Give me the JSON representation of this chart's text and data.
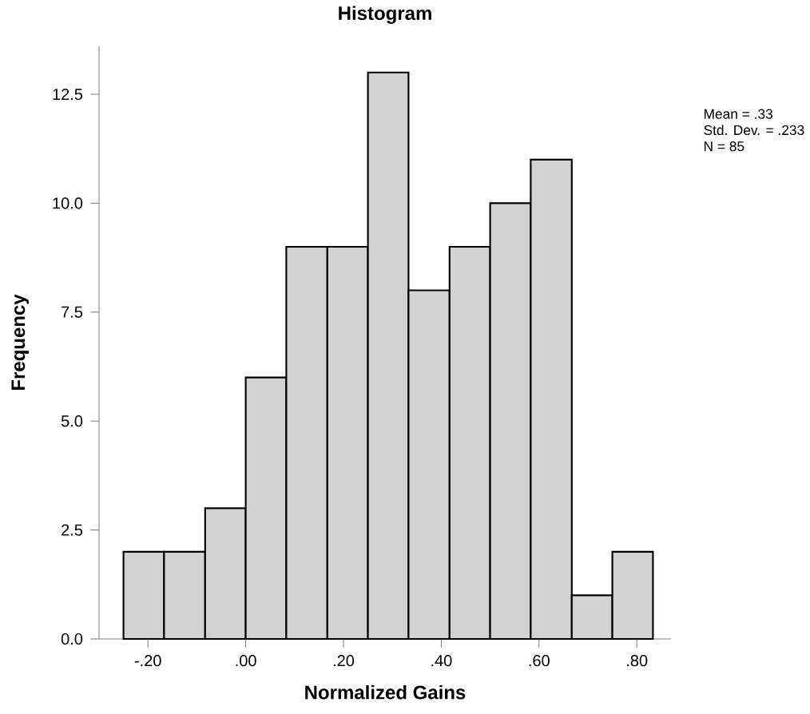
{
  "chart_data": {
    "type": "histogram",
    "title": "Histogram",
    "xlabel": "Normalized Gains",
    "ylabel": "Frequency",
    "bins": [
      -0.25,
      -0.167,
      -0.083,
      0,
      0.083,
      0.167,
      0.25,
      0.333,
      0.417,
      0.5,
      0.583,
      0.667,
      0.75,
      0.833
    ],
    "values": [
      2,
      2,
      3,
      6,
      9,
      9,
      13,
      8,
      9,
      10,
      11,
      1,
      2
    ],
    "color": "#d2d2d2",
    "xlim": [
      -0.3,
      0.87
    ],
    "ylim": [
      0,
      13.6
    ],
    "xticks": [
      {
        "value": -0.2,
        "label": "-.20"
      },
      {
        "value": 0,
        "label": ".00"
      },
      {
        "value": 0.2,
        "label": ".20"
      },
      {
        "value": 0.4,
        "label": ".40"
      },
      {
        "value": 0.6,
        "label": ".60"
      },
      {
        "value": 0.8,
        "label": ".80"
      }
    ],
    "yticks": [
      {
        "value": 0,
        "label": "0.0"
      },
      {
        "value": 2.5,
        "label": "2.5"
      },
      {
        "value": 5,
        "label": "5.0"
      },
      {
        "value": 7.5,
        "label": "7.5"
      },
      {
        "value": 10,
        "label": "10.0"
      },
      {
        "value": 12.5,
        "label": "12.5"
      }
    ],
    "annotations": [
      "Mean = .33",
      "Std. Dev. = .233",
      "N = 85"
    ]
  }
}
